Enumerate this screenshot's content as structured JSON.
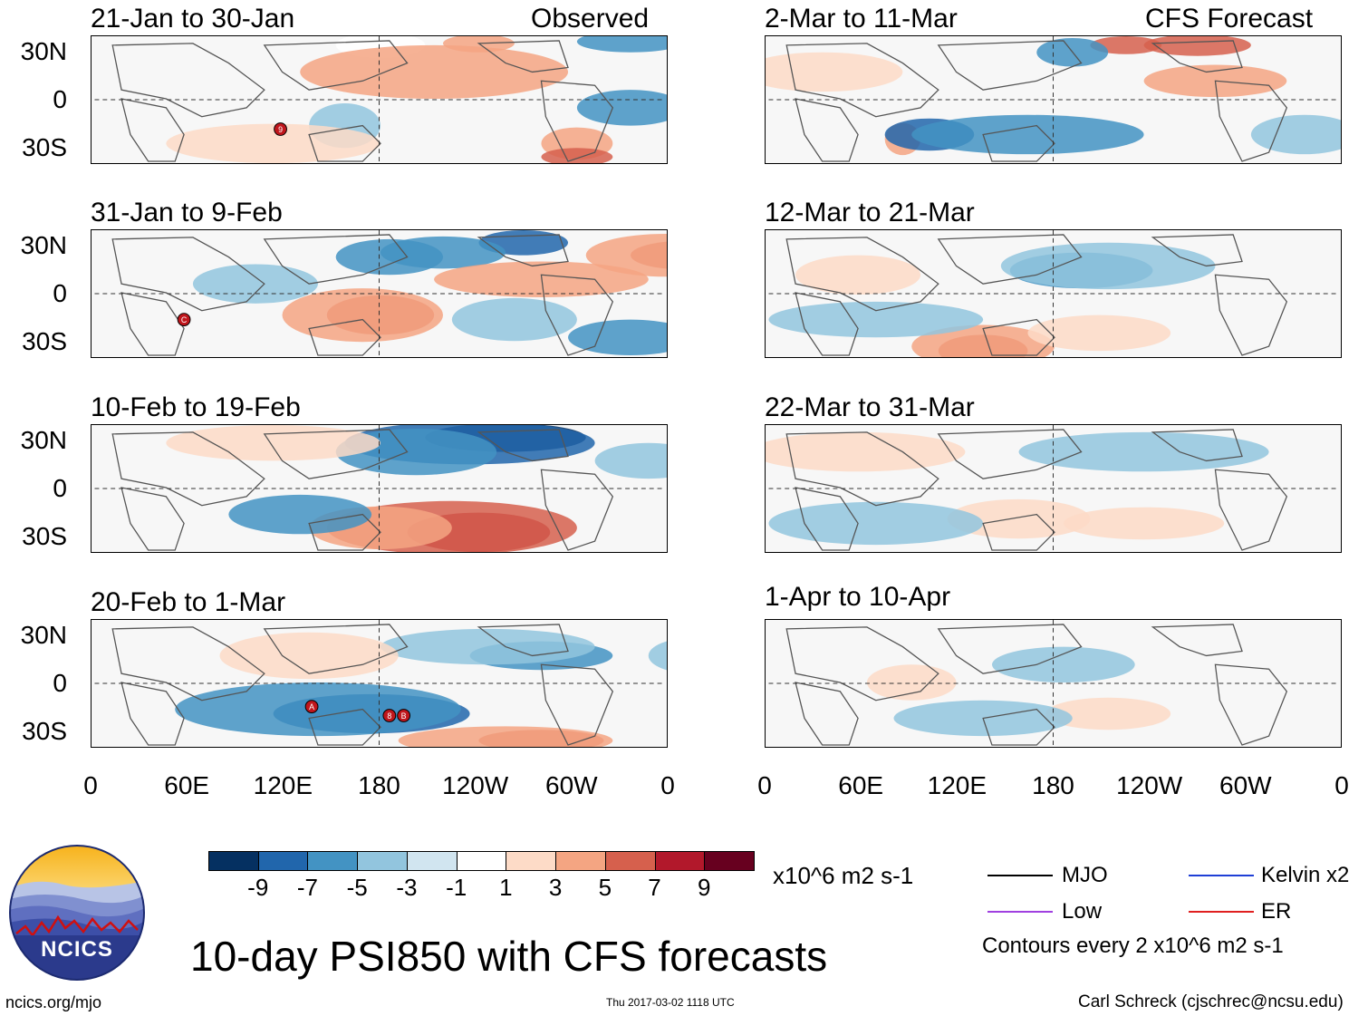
{
  "observed_label": "Observed",
  "forecast_label": "CFS Forecast",
  "panels_left": [
    {
      "title": "21-Jan to 30-Jan"
    },
    {
      "title": "31-Jan to 9-Feb"
    },
    {
      "title": "10-Feb to 19-Feb"
    },
    {
      "title": "20-Feb to 1-Mar"
    }
  ],
  "panels_right": [
    {
      "title": "2-Mar to 11-Mar"
    },
    {
      "title": "12-Mar to 21-Mar"
    },
    {
      "title": "22-Mar to 31-Mar"
    },
    {
      "title": "1-Apr to 10-Apr"
    }
  ],
  "lat_labels": [
    "30N",
    "0",
    "30S"
  ],
  "lon_labels": [
    "0",
    "60E",
    "120E",
    "180",
    "120W",
    "60W",
    "0"
  ],
  "cyclone_marks": [
    {
      "panel": "left-0",
      "letter": "9"
    },
    {
      "panel": "left-1",
      "letter": "C"
    },
    {
      "panel": "left-3",
      "letter": "A"
    },
    {
      "panel": "left-3",
      "letter": "8"
    },
    {
      "panel": "left-3",
      "letter": "B"
    }
  ],
  "colorbar": {
    "colors": [
      "#053061",
      "#2166ac",
      "#4393c3",
      "#92c5de",
      "#d1e5f0",
      "#ffffff",
      "#fddbc7",
      "#f4a582",
      "#d6604d",
      "#b2182b",
      "#67001f"
    ],
    "labels": [
      "-9",
      "-7",
      "-5",
      "-3",
      "-1",
      "1",
      "3",
      "5",
      "7",
      "9"
    ],
    "units": "x10^6 m2 s-1"
  },
  "legend": [
    {
      "label": "MJO",
      "color": "#000000"
    },
    {
      "label": "Kelvin x2",
      "color": "#1f3fd6"
    },
    {
      "label": "Low",
      "color": "#a040e0"
    },
    {
      "label": "ER",
      "color": "#e02020"
    }
  ],
  "contours_note": "Contours every 2 x10^6 m2 s-1",
  "main_title": "10-day PSI850 with CFS forecasts",
  "logo_text": "NCICS",
  "website": "ncics.org/mjo",
  "timestamp": "Thu 2017-03-02 1118 UTC",
  "credit": "Carl Schreck (cjschrec@ncsu.edu)"
}
